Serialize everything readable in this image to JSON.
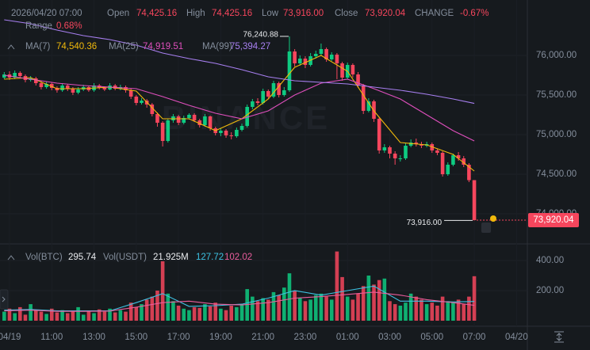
{
  "header": {
    "datetime": "2026/04/20 07:00",
    "open_label": "Open",
    "open": "74,425.16",
    "high_label": "High",
    "high": "74,425.16",
    "low_label": "Low",
    "low": "73,916.00",
    "close_label": "Close",
    "close": "73,920.04",
    "change_label": "CHANGE",
    "change": "-0.67%",
    "range_label": "Range",
    "range": "0.68%"
  },
  "watermark": "BINANCE",
  "chart_data": {
    "type": "candlestick",
    "xlim": [
      -0.8,
      98.3
    ],
    "xticks": [
      {
        "value": 1,
        "label": "04/19"
      },
      {
        "value": 9,
        "label": "11:00"
      },
      {
        "value": 17,
        "label": "13:00"
      },
      {
        "value": 25,
        "label": "15:00"
      },
      {
        "value": 33,
        "label": "17:00"
      },
      {
        "value": 41,
        "label": "19:00"
      },
      {
        "value": 49,
        "label": "21:00"
      },
      {
        "value": 57,
        "label": "23:00"
      },
      {
        "value": 65,
        "label": "01:00"
      },
      {
        "value": 73,
        "label": "03:00"
      },
      {
        "value": 81,
        "label": "05:00"
      },
      {
        "value": 89,
        "label": "07:00"
      },
      {
        "value": 97,
        "label": "04/20"
      }
    ],
    "ylim": [
      73650,
      76700
    ],
    "yticks": [
      {
        "value": 74000,
        "label": "74,000.00"
      },
      {
        "value": 74500,
        "label": "74,500.00"
      },
      {
        "value": 75000,
        "label": "75,000.00"
      },
      {
        "value": 75500,
        "label": "75,500.00"
      },
      {
        "value": 76000,
        "label": "76,000.00"
      }
    ],
    "up_color": "#0ecb81",
    "down_color": "#f6465d",
    "open": [
      75720,
      75760,
      75720,
      75780,
      75740,
      75690,
      75710,
      75650,
      75600,
      75640,
      75590,
      75560,
      75620,
      75580,
      75530,
      75570,
      75600,
      75560,
      75620,
      75590,
      75570,
      75620,
      75580,
      75600,
      75560,
      75480,
      75400,
      75430,
      75380,
      75260,
      75150,
      74920,
      75180,
      75230,
      75150,
      75210,
      75250,
      75180,
      75120,
      75230,
      75080,
      75020,
      75050,
      74990,
      74980,
      75060,
      75110,
      75350,
      75420,
      75400,
      75550,
      75480,
      75650,
      75500,
      75560,
      76050,
      75900,
      75960,
      75880,
      75990,
      76020,
      76080,
      75950,
      76010,
      75900,
      75720,
      75880,
      75760,
      75620,
      75300,
      75420,
      75200,
      74800,
      74840,
      74760,
      74700,
      74700,
      74860,
      74900,
      74880,
      74860,
      74880,
      74800,
      74770,
      74500,
      74620,
      74740,
      74700,
      74620,
      74425.16
    ],
    "high": [
      75790,
      75800,
      75810,
      75800,
      75760,
      75740,
      75730,
      75680,
      75670,
      75660,
      75610,
      75650,
      75640,
      75600,
      75600,
      75630,
      75620,
      75650,
      75640,
      75610,
      75650,
      75640,
      75630,
      75620,
      75580,
      75500,
      75460,
      75450,
      75400,
      75280,
      75170,
      75200,
      75260,
      75250,
      75240,
      75270,
      75270,
      75200,
      75260,
      75240,
      75100,
      75080,
      75070,
      75030,
      75090,
      75140,
      75380,
      75450,
      75460,
      75580,
      75570,
      75680,
      75670,
      75600,
      76240.88,
      76080,
      76000,
      75990,
      76030,
      76060,
      76150,
      76100,
      76040,
      76030,
      75920,
      75910,
      75900,
      75790,
      75640,
      75460,
      75440,
      75220,
      74880,
      74860,
      74790,
      74740,
      74890,
      74940,
      74950,
      74910,
      74910,
      74900,
      74820,
      74790,
      74650,
      74760,
      74780,
      74730,
      74640,
      74425.16
    ],
    "low": [
      75700,
      75690,
      75700,
      75710,
      75660,
      75670,
      75620,
      75570,
      75580,
      75560,
      75530,
      75540,
      75550,
      75500,
      75510,
      75550,
      75540,
      75540,
      75570,
      75550,
      75560,
      75560,
      75560,
      75530,
      75450,
      75370,
      75380,
      75340,
      75230,
      75100,
      74850,
      74900,
      75150,
      75120,
      75130,
      75190,
      75160,
      75090,
      75100,
      75050,
      74990,
      74980,
      74960,
      74940,
      74960,
      75040,
      75090,
      75320,
      75370,
      75380,
      75450,
      75460,
      75470,
      75480,
      75540,
      75860,
      75870,
      75840,
      75860,
      75960,
      76000,
      75920,
      75930,
      75700,
      75680,
      75700,
      75720,
      75590,
      75260,
      75280,
      75160,
      74760,
      74770,
      74700,
      74620,
      74660,
      74680,
      74840,
      74850,
      74830,
      74840,
      74770,
      74740,
      74470,
      74480,
      74600,
      74670,
      74590,
      74400,
      73916
    ],
    "close": [
      75760,
      75720,
      75780,
      75740,
      75690,
      75710,
      75650,
      75600,
      75640,
      75590,
      75560,
      75620,
      75580,
      75530,
      75570,
      75600,
      75560,
      75620,
      75590,
      75570,
      75620,
      75580,
      75600,
      75560,
      75480,
      75400,
      75430,
      75380,
      75260,
      75150,
      74920,
      75180,
      75230,
      75150,
      75210,
      75250,
      75180,
      75120,
      75230,
      75080,
      75020,
      75050,
      74990,
      74980,
      75060,
      75110,
      75350,
      75420,
      75400,
      75550,
      75480,
      75650,
      75500,
      75560,
      76050,
      75900,
      75960,
      75880,
      75990,
      76020,
      76080,
      75950,
      76010,
      75900,
      75720,
      75880,
      75760,
      75620,
      75300,
      75420,
      75200,
      74800,
      74840,
      74760,
      74700,
      74700,
      74860,
      74900,
      74880,
      74860,
      74880,
      74800,
      74770,
      74500,
      74620,
      74740,
      74700,
      74620,
      74425.16,
      73920.04
    ],
    "volume": [
      60,
      80,
      50,
      90,
      40,
      110,
      70,
      60,
      45,
      80,
      55,
      70,
      50,
      60,
      90,
      40,
      65,
      50,
      75,
      60,
      80,
      55,
      70,
      60,
      120,
      90,
      110,
      140,
      160,
      200,
      395,
      180,
      130,
      100,
      80,
      70,
      90,
      85,
      110,
      95,
      120,
      80,
      70,
      100,
      90,
      110,
      210,
      160,
      130,
      150,
      140,
      190,
      170,
      220,
      315,
      200,
      150,
      130,
      140,
      170,
      180,
      160,
      140,
      460,
      290,
      160,
      140,
      180,
      230,
      300,
      240,
      270,
      280,
      130,
      110,
      100,
      120,
      180,
      160,
      140,
      110,
      120,
      100,
      160,
      130,
      120,
      140,
      110,
      160,
      295.74
    ],
    "ma_x": [
      0,
      5,
      10,
      15,
      20,
      25,
      30,
      35,
      40,
      45,
      50,
      55,
      60,
      65,
      70,
      75,
      80,
      85,
      89
    ],
    "ma_lines": [
      {
        "name": "MA(7)",
        "color": "#f0b90b",
        "last_label": "74,540.36",
        "values": [
          75700,
          75720,
          75580,
          75580,
          75600,
          75550,
          75200,
          75200,
          75050,
          75200,
          75450,
          75850,
          76000,
          75800,
          75300,
          74900,
          74870,
          74750,
          74540.36
        ]
      },
      {
        "name": "MA(25)",
        "color": "#e04fbd",
        "last_label": "74,919.51",
        "values": [
          75750,
          75700,
          75650,
          75620,
          75600,
          75580,
          75480,
          75370,
          75270,
          75200,
          75300,
          75500,
          75650,
          75700,
          75580,
          75450,
          75250,
          75050,
          74919.51
        ]
      },
      {
        "name": "MA(99)",
        "color": "#a77ff0",
        "last_label": "75,394.27",
        "values": [
          76450,
          76400,
          76320,
          76250,
          76200,
          76130,
          76030,
          75960,
          75900,
          75820,
          75730,
          75680,
          75660,
          75640,
          75600,
          75560,
          75510,
          75450,
          75394.27
        ]
      }
    ],
    "volume_ylim": [
      0,
      500
    ],
    "volume_yticks": [
      {
        "value": 200,
        "label": "200.00"
      },
      {
        "value": 400,
        "label": "400.00"
      }
    ],
    "volume_legend": {
      "btc_label": "Vol(BTC)",
      "btc": "295.74",
      "usdt_label": "Vol(USDT)",
      "usdt": "21.925M"
    },
    "volume_ma_lines": [
      {
        "color": "#3dc2e3",
        "last_label": "127.72",
        "values": [
          70,
          75,
          65,
          65,
          65,
          120,
          180,
          95,
          100,
          110,
          150,
          200,
          170,
          200,
          230,
          130,
          130,
          125,
          127.72
        ]
      },
      {
        "color": "#ea5d9c",
        "last_label": "102.02",
        "values": [
          65,
          70,
          62,
          62,
          64,
          90,
          120,
          130,
          110,
          105,
          120,
          150,
          160,
          175,
          190,
          170,
          140,
          120,
          102.02
        ]
      }
    ],
    "high_marker": {
      "index": 54,
      "value": 76240.88,
      "label": "76,240.88"
    },
    "low_marker": {
      "index": 89,
      "value": 73916,
      "label": "73,916.00"
    },
    "last_price": {
      "value": 73920.04,
      "label": "73,920.04"
    }
  }
}
